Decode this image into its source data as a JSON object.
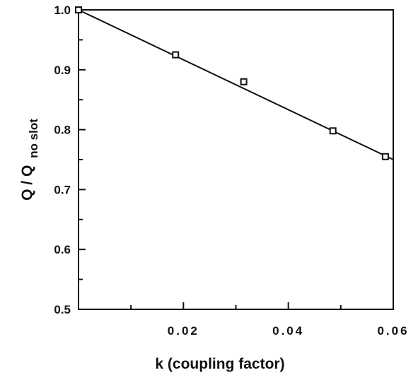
{
  "chart_data": {
    "type": "scatter",
    "title": "",
    "xlabel": "k (coupling factor)",
    "ylabel": {
      "main": "Q / Q",
      "subscript": "no slot"
    },
    "xlim": [
      0,
      0.06
    ],
    "ylim": [
      0.5,
      1.0
    ],
    "x_tick_labels": [
      "0.02",
      "0.04",
      "0.06"
    ],
    "y_tick_labels": [
      "0.5",
      "0.6",
      "0.7",
      "0.8",
      "0.9",
      "1.0"
    ],
    "grid": false,
    "legend": "none",
    "series": [
      {
        "marker": "open-square",
        "points": [
          {
            "x": 0.0,
            "y": 1.0
          },
          {
            "x": 0.0185,
            "y": 0.925
          },
          {
            "x": 0.0315,
            "y": 0.88
          },
          {
            "x": 0.0485,
            "y": 0.798
          },
          {
            "x": 0.0585,
            "y": 0.755
          }
        ]
      }
    ],
    "fit_line": {
      "type": "linear",
      "x": [
        0.0,
        0.06
      ],
      "y": [
        1.0,
        0.75
      ]
    }
  }
}
